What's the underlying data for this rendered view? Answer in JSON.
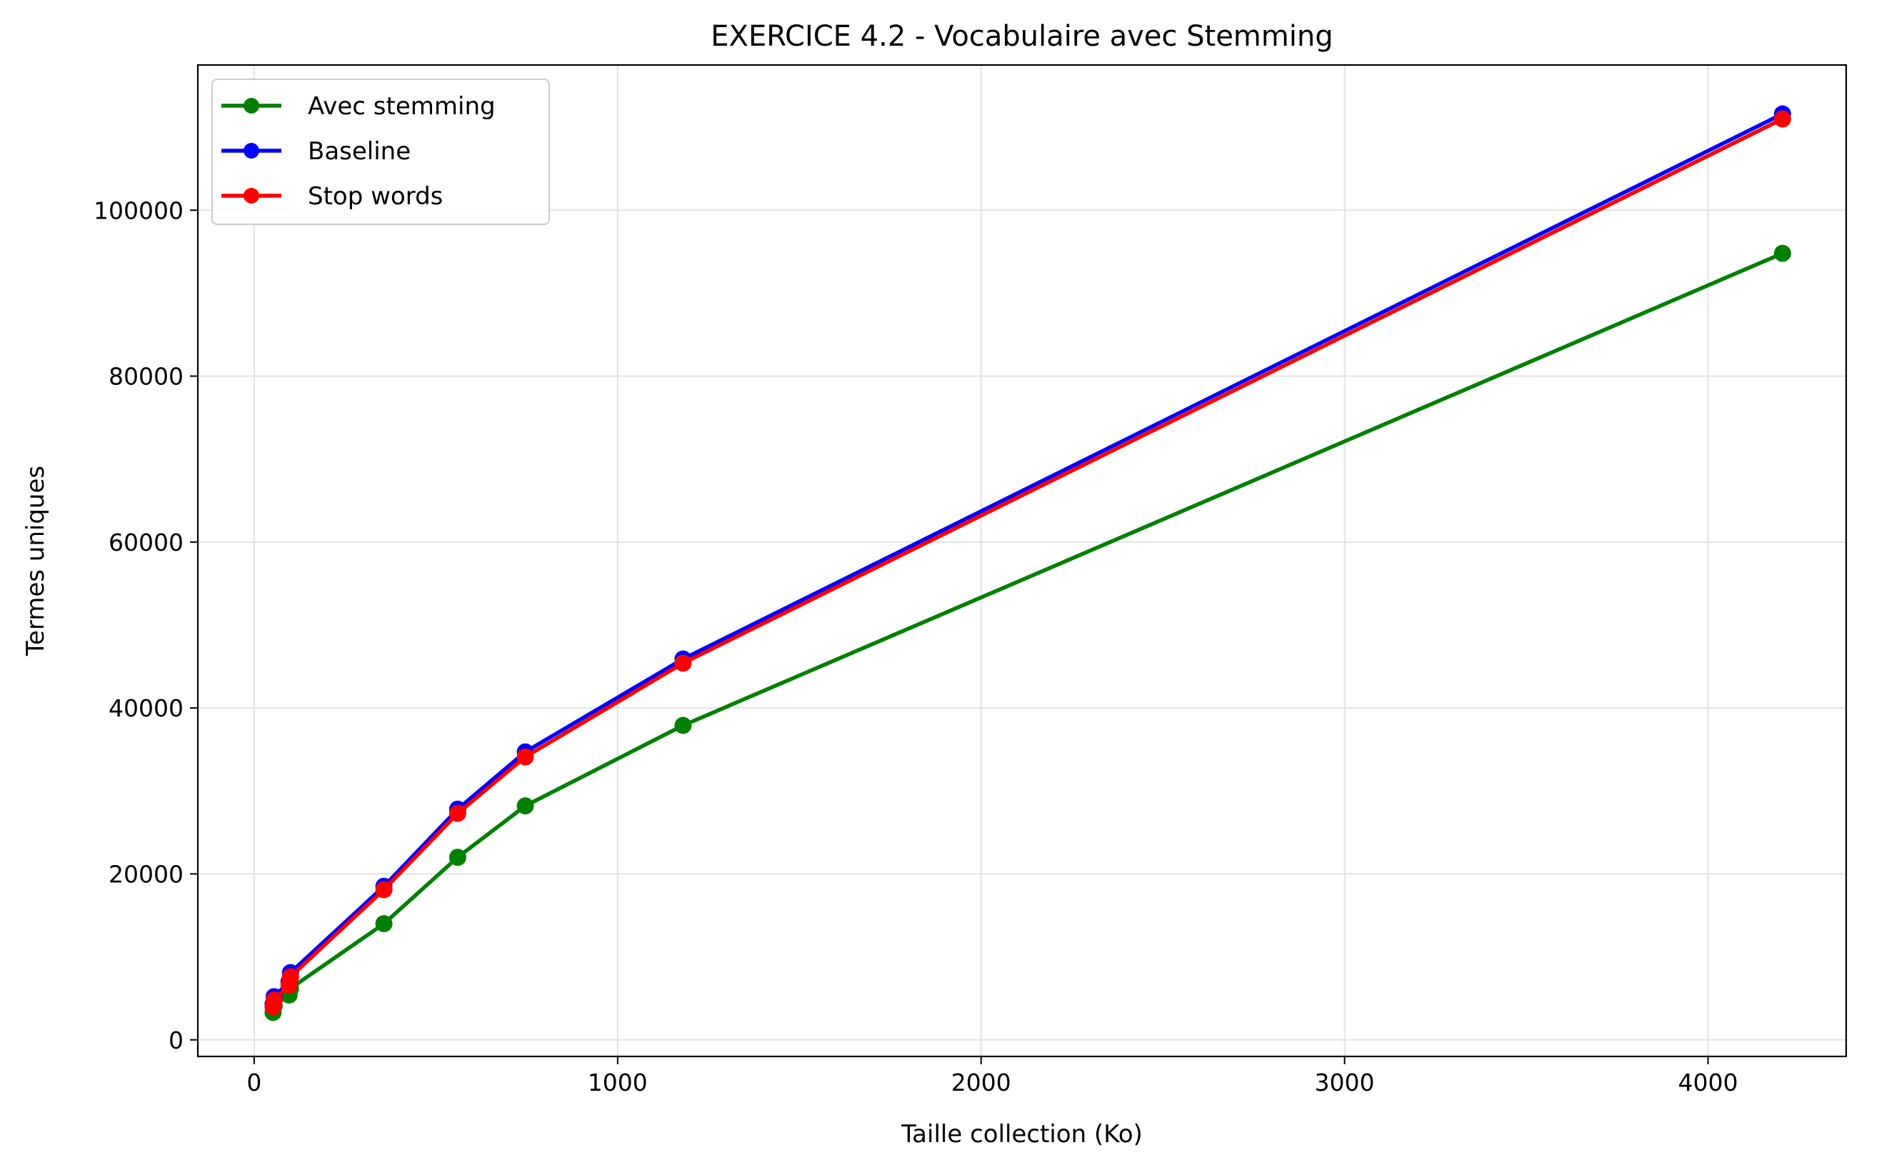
{
  "chart_data": {
    "type": "line",
    "title": "EXERCICE 4.2 - Vocabulaire avec Stemming",
    "xlabel": "Taille collection (Ko)",
    "ylabel": "Termes uniques",
    "xlim": [
      -155,
      4380
    ],
    "ylim": [
      -2000,
      117500
    ],
    "xticks": [
      0,
      1000,
      2000,
      3000,
      4000
    ],
    "yticks": [
      0,
      20000,
      40000,
      60000,
      80000,
      100000
    ],
    "grid": true,
    "legend_position": "upper left",
    "series": [
      {
        "name": "Avec stemming",
        "color": "#008000",
        "x": [
          52,
          55,
          96,
          100,
          357,
          560,
          746,
          1180,
          4205
        ],
        "y": [
          3300,
          4100,
          5400,
          6200,
          14000,
          22000,
          28200,
          37900,
          94800
        ]
      },
      {
        "name": "Baseline",
        "color": "#0000ff",
        "x": [
          52,
          55,
          96,
          100,
          357,
          560,
          746,
          1180,
          4205
        ],
        "y": [
          4300,
          5200,
          7000,
          8100,
          18500,
          27800,
          34700,
          45900,
          111600
        ]
      },
      {
        "name": "Stop words",
        "color": "#ff0000",
        "x": [
          52,
          55,
          96,
          100,
          357,
          560,
          746,
          1180,
          4205
        ],
        "y": [
          4000,
          4800,
          6600,
          7600,
          18100,
          27300,
          34100,
          45400,
          111000
        ]
      }
    ]
  }
}
